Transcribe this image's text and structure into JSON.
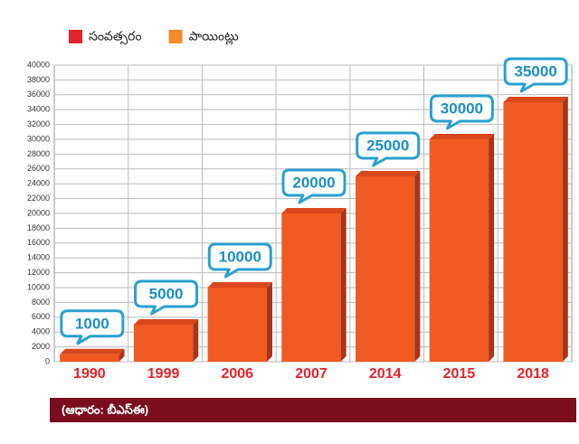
{
  "chart_data": {
    "type": "bar3d",
    "legend": [
      {
        "name": "సంవత్సరం",
        "color": "#e3232b"
      },
      {
        "name": "పాయింట్లు",
        "color": "#f58a2b"
      }
    ],
    "categories": [
      "1990",
      "1999",
      "2006",
      "2007",
      "2014",
      "2015",
      "2018"
    ],
    "series": [
      {
        "name": "పాయింట్లు",
        "color": "#f15a22",
        "values": [
          1000,
          5000,
          10000,
          20000,
          25000,
          30000,
          35000
        ]
      }
    ],
    "ylim": [
      0,
      40000
    ],
    "yticks": [
      0,
      2000,
      4000,
      6000,
      8000,
      10000,
      12000,
      14000,
      16000,
      18000,
      20000,
      22000,
      24000,
      26000,
      28000,
      30000,
      32000,
      34000,
      36000,
      38000,
      40000
    ],
    "grid": true,
    "source": "(ఆధారం: బీఎస్ఈ)"
  }
}
